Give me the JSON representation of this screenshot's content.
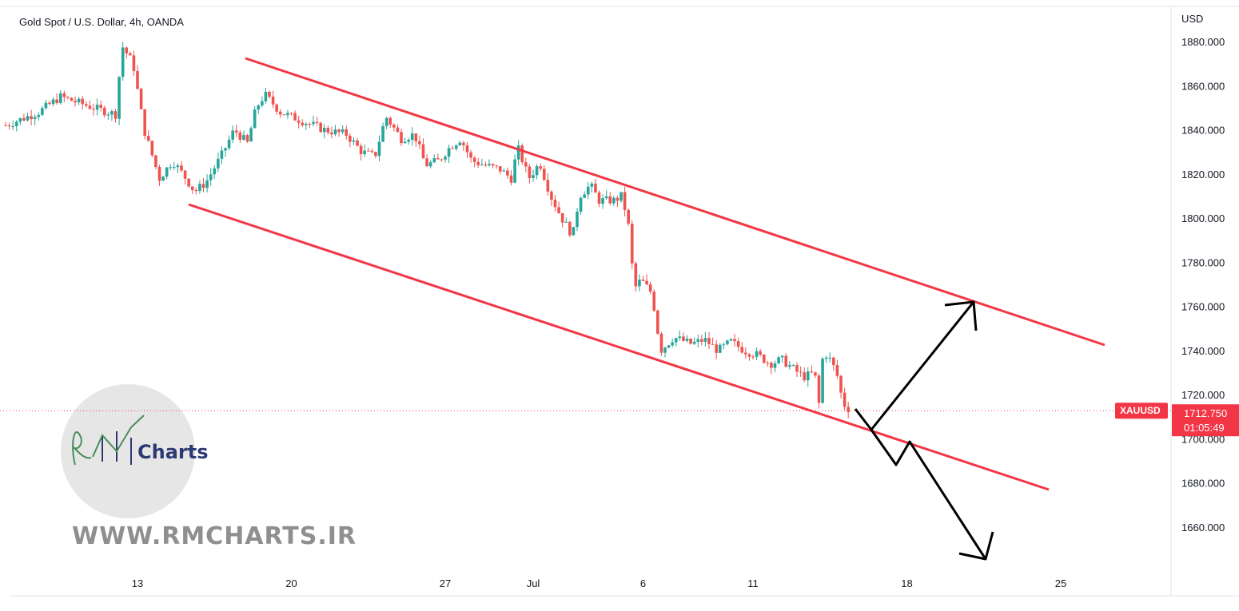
{
  "chart_data": {
    "type": "candlestick",
    "title": "Gold Spot / U.S. Dollar, 4h, OANDA",
    "currency": "USD",
    "symbol": "XAUUSD",
    "last_price": "1712.750",
    "countdown": "01:05:49",
    "last_price_value": 1712.75,
    "ylim": [
      1640,
      1890
    ],
    "y_ticks": [
      "1880.000",
      "1860.000",
      "1840.000",
      "1820.000",
      "1800.000",
      "1780.000",
      "1760.000",
      "1740.000",
      "1720.000",
      "1700.000",
      "1680.000",
      "1660.000"
    ],
    "x_ticks": [
      {
        "label": "13",
        "day": 13
      },
      {
        "label": "20",
        "day": 20
      },
      {
        "label": "27",
        "day": 27
      },
      {
        "label": "Jul",
        "day": 31
      },
      {
        "label": "6",
        "day": 36
      },
      {
        "label": "11",
        "day": 41
      },
      {
        "label": "18",
        "day": 48
      },
      {
        "label": "25",
        "day": 55
      }
    ],
    "up_color": "#26a69a",
    "down_color": "#ef5350",
    "channel_color": "#f23645",
    "projection_color": "#000000",
    "price_path": [
      [
        7.0,
        1842
      ],
      [
        8.5,
        1848
      ],
      [
        9.5,
        1855
      ],
      [
        11.0,
        1850
      ],
      [
        12.0,
        1847
      ],
      [
        12.3,
        1878
      ],
      [
        12.8,
        1870
      ],
      [
        13.3,
        1840
      ],
      [
        14.0,
        1818
      ],
      [
        14.6,
        1826
      ],
      [
        15.2,
        1818
      ],
      [
        15.6,
        1812
      ],
      [
        16.1,
        1816
      ],
      [
        16.8,
        1828
      ],
      [
        17.4,
        1840
      ],
      [
        18.0,
        1834
      ],
      [
        18.4,
        1850
      ],
      [
        18.8,
        1856
      ],
      [
        19.5,
        1848
      ],
      [
        20.5,
        1844
      ],
      [
        21.5,
        1840
      ],
      [
        22.5,
        1838
      ],
      [
        23.2,
        1830
      ],
      [
        23.8,
        1828
      ],
      [
        24.3,
        1846
      ],
      [
        25.0,
        1836
      ],
      [
        25.6,
        1838
      ],
      [
        26.1,
        1824
      ],
      [
        26.7,
        1826
      ],
      [
        27.2,
        1832
      ],
      [
        27.7,
        1836
      ],
      [
        28.2,
        1826
      ],
      [
        28.8,
        1824
      ],
      [
        29.5,
        1822
      ],
      [
        30.0,
        1818
      ],
      [
        30.3,
        1832
      ],
      [
        30.8,
        1818
      ],
      [
        31.3,
        1825
      ],
      [
        31.8,
        1810
      ],
      [
        32.3,
        1800
      ],
      [
        32.8,
        1792
      ],
      [
        33.1,
        1810
      ],
      [
        33.6,
        1815
      ],
      [
        34.0,
        1808
      ],
      [
        34.7,
        1808
      ],
      [
        35.0,
        1810
      ],
      [
        35.3,
        1800
      ],
      [
        35.6,
        1768
      ],
      [
        35.9,
        1772
      ],
      [
        36.4,
        1766
      ],
      [
        36.8,
        1740
      ],
      [
        37.4,
        1746
      ],
      [
        38.2,
        1743
      ],
      [
        38.8,
        1745
      ],
      [
        39.4,
        1740
      ],
      [
        40.0,
        1744
      ],
      [
        40.6,
        1740
      ],
      [
        41.2,
        1738
      ],
      [
        41.8,
        1734
      ],
      [
        42.3,
        1736
      ],
      [
        42.8,
        1732
      ],
      [
        43.3,
        1728
      ],
      [
        43.8,
        1730
      ],
      [
        44.0,
        1716
      ],
      [
        44.2,
        1740
      ],
      [
        44.5,
        1736
      ],
      [
        44.8,
        1730
      ],
      [
        45.1,
        1716
      ],
      [
        45.4,
        1713
      ]
    ]
  },
  "watermark": {
    "logo_brand": "Charts",
    "url": "WWW.RMCHARTS.IR"
  }
}
